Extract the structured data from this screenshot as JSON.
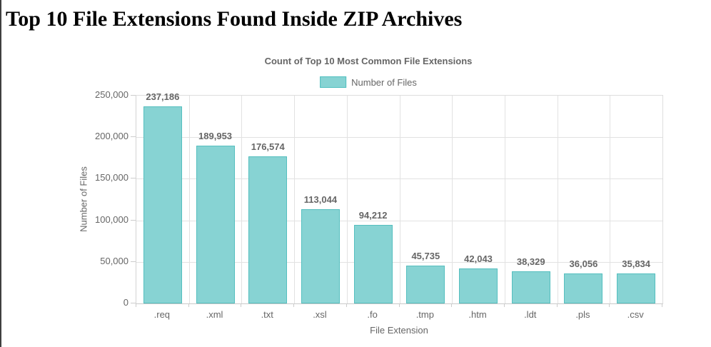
{
  "page": {
    "title": "Top 10 File Extensions Found Inside ZIP Archives"
  },
  "chart_data": {
    "type": "bar",
    "title": "Count of Top 10 Most Common File Extensions",
    "legend": {
      "label": "Number of Files",
      "position": "top-center"
    },
    "xlabel": "File Extension",
    "ylabel": "Number of Files",
    "categories": [
      ".req",
      ".xml",
      ".txt",
      ".xsl",
      ".fo",
      ".tmp",
      ".htm",
      ".ldt",
      ".pls",
      ".csv"
    ],
    "values": [
      237186,
      189953,
      176574,
      113044,
      94212,
      45735,
      42043,
      38329,
      36056,
      35834
    ],
    "value_labels": [
      "237,186",
      "189,953",
      "176,574",
      "113,044",
      "94,212",
      "45,735",
      "42,043",
      "38,329",
      "36,056",
      "35,834"
    ],
    "ylim": [
      0,
      250000
    ],
    "ytick_step": 50000,
    "ytick_labels": [
      "0",
      "50,000",
      "100,000",
      "150,000",
      "200,000",
      "250,000"
    ],
    "grid": true,
    "colors": {
      "bar_fill": "#87d3d3",
      "bar_border": "#55bfbf",
      "grid_line": "#e2e2e2",
      "tick_line": "#cccccc",
      "axis_text": "#666666",
      "page_title_text": "#000000",
      "window_edge": "#3f3f3f"
    }
  }
}
